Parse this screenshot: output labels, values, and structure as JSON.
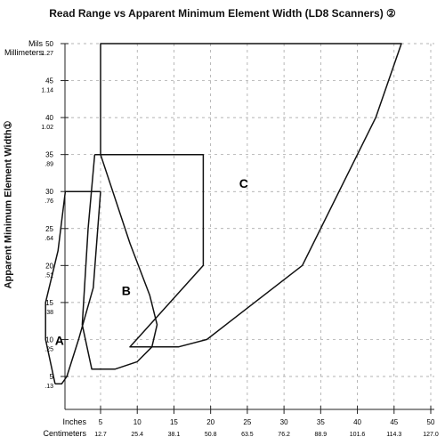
{
  "chart_data": {
    "type": "area",
    "title": "Read Range vs Apparent Minimum Element Width (LD8 Scanners) ②",
    "ylabel": "Apparent Minimum Element Width①",
    "y_unit_primary": "Mils",
    "y_unit_secondary": "Millimeters",
    "x_unit_primary": "Inches",
    "x_unit_secondary": "Centimeters",
    "xlim": [
      0,
      50
    ],
    "ylim": [
      0,
      50
    ],
    "grid": true,
    "x_ticks": [
      {
        "in": "5",
        "cm": "12.7"
      },
      {
        "in": "10",
        "cm": "25.4"
      },
      {
        "in": "15",
        "cm": "38.1"
      },
      {
        "in": "20",
        "cm": "50.8"
      },
      {
        "in": "25",
        "cm": "63.5"
      },
      {
        "in": "30",
        "cm": "76.2"
      },
      {
        "in": "35",
        "cm": "88.9"
      },
      {
        "in": "40",
        "cm": "101.6"
      },
      {
        "in": "45",
        "cm": "114.3"
      },
      {
        "in": "50",
        "cm": "127.0"
      }
    ],
    "y_ticks": [
      {
        "mils": "5",
        "mm": ".13"
      },
      {
        "mils": "10",
        "mm": ".25"
      },
      {
        "mils": "15",
        "mm": ".38"
      },
      {
        "mils": "20",
        "mm": ".51"
      },
      {
        "mils": "25",
        "mm": ".64"
      },
      {
        "mils": "30",
        "mm": ".76"
      },
      {
        "mils": "35",
        "mm": ".89"
      },
      {
        "mils": "40",
        "mm": "1.02"
      },
      {
        "mils": "45",
        "mm": "1.14"
      },
      {
        "mils": "50",
        "mm": "1.27"
      }
    ],
    "series": [
      {
        "name": "A",
        "label_at": [
          -0.6,
          9.3
        ],
        "points": [
          [
            -1.2,
            4
          ],
          [
            -0.3,
            4
          ],
          [
            0.4,
            5
          ],
          [
            2,
            10
          ],
          [
            4,
            17
          ],
          [
            5,
            30
          ],
          [
            0.2,
            30
          ],
          [
            -0.8,
            22
          ],
          [
            -2.5,
            15
          ],
          [
            -2.5,
            10
          ],
          [
            -1.2,
            4
          ]
        ]
      },
      {
        "name": "B",
        "label_at": [
          8.5,
          16.0
        ],
        "points": [
          [
            4.2,
            35
          ],
          [
            5,
            35
          ],
          [
            9,
            23
          ],
          [
            11.7,
            16
          ],
          [
            12.7,
            12
          ],
          [
            12,
            9
          ],
          [
            10,
            7
          ],
          [
            7,
            6
          ],
          [
            3.8,
            6
          ],
          [
            2.5,
            12
          ],
          [
            3.3,
            25
          ],
          [
            4.2,
            35
          ]
        ]
      },
      {
        "name": "C",
        "label_at": [
          24.5,
          30.5
        ],
        "points": [
          [
            4.2,
            35
          ],
          [
            19,
            35
          ],
          [
            19,
            20
          ],
          [
            9,
            9
          ],
          [
            15.6,
            9
          ],
          [
            19.5,
            10
          ],
          [
            32.5,
            20
          ],
          [
            42.5,
            40
          ],
          [
            46,
            50
          ],
          [
            5,
            50
          ],
          [
            5,
            35
          ]
        ]
      }
    ]
  }
}
